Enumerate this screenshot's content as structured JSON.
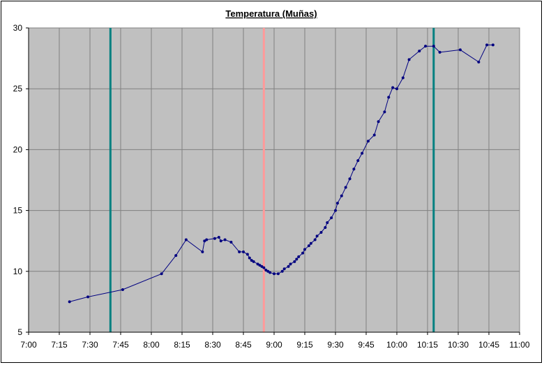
{
  "chart_data": {
    "type": "line",
    "title": "Temperatura (Muñas)",
    "xlabel": "",
    "ylabel": "",
    "x_ticks": [
      "7:00",
      "7:15",
      "7:30",
      "7:45",
      "8:00",
      "8:15",
      "8:30",
      "8:45",
      "9:00",
      "9:15",
      "9:30",
      "9:45",
      "10:00",
      "10:15",
      "10:30",
      "10:45",
      "11:00"
    ],
    "y_ticks": [
      "5",
      "10",
      "15",
      "20",
      "25",
      "30"
    ],
    "xlim": [
      "7:00",
      "11:00"
    ],
    "ylim": [
      5,
      30
    ],
    "grid": true,
    "plot_background": "#c0c0c0",
    "series": [
      {
        "color": "#000080",
        "x": [
          "7:20",
          "7:29",
          "7:46",
          "8:05",
          "8:12",
          "8:17",
          "8:25",
          "8:26",
          "8:27",
          "8:31",
          "8:33",
          "8:34",
          "8:36",
          "8:39",
          "8:43",
          "8:45",
          "8:47",
          "8:48",
          "8:49",
          "8:50",
          "8:52",
          "8:53",
          "8:54",
          "8:55",
          "8:56",
          "8:57",
          "8:58",
          "9:00",
          "9:02",
          "9:04",
          "9:05",
          "9:07",
          "9:08",
          "9:10",
          "9:11",
          "9:12",
          "9:14",
          "9:15",
          "9:17",
          "9:18",
          "9:20",
          "9:21",
          "9:23",
          "9:25",
          "9:26",
          "9:28",
          "9:30",
          "9:31",
          "9:33",
          "9:35",
          "9:37",
          "9:39",
          "9:41",
          "9:43",
          "9:46",
          "9:49",
          "9:51",
          "9:54",
          "9:56",
          "9:58",
          "10:00",
          "10:03",
          "10:06",
          "10:11",
          "10:14",
          "10:18",
          "10:21",
          "10:31",
          "10:40",
          "10:44",
          "10:47"
        ],
        "values": [
          7.5,
          7.9,
          8.5,
          9.8,
          11.3,
          12.6,
          11.6,
          12.5,
          12.6,
          12.7,
          12.8,
          12.5,
          12.6,
          12.4,
          11.6,
          11.6,
          11.4,
          11.1,
          10.9,
          10.8,
          10.6,
          10.5,
          10.4,
          10.3,
          10.1,
          10.0,
          9.9,
          9.8,
          9.8,
          10.0,
          10.2,
          10.4,
          10.6,
          10.8,
          11.0,
          11.2,
          11.5,
          11.8,
          12.1,
          12.3,
          12.6,
          12.9,
          13.2,
          13.6,
          14.0,
          14.4,
          15.0,
          15.6,
          16.2,
          16.9,
          17.6,
          18.4,
          19.1,
          19.7,
          20.7,
          21.2,
          22.3,
          23.1,
          24.3,
          25.1,
          25.0,
          25.9,
          27.4,
          28.1,
          28.5,
          28.5,
          28.0,
          28.2,
          27.2,
          28.6,
          28.6
        ]
      }
    ],
    "markers": [
      {
        "x": "7:40",
        "color": "#008080"
      },
      {
        "x": "8:55",
        "color": "#ff9999"
      },
      {
        "x": "10:18",
        "color": "#008080"
      }
    ]
  }
}
